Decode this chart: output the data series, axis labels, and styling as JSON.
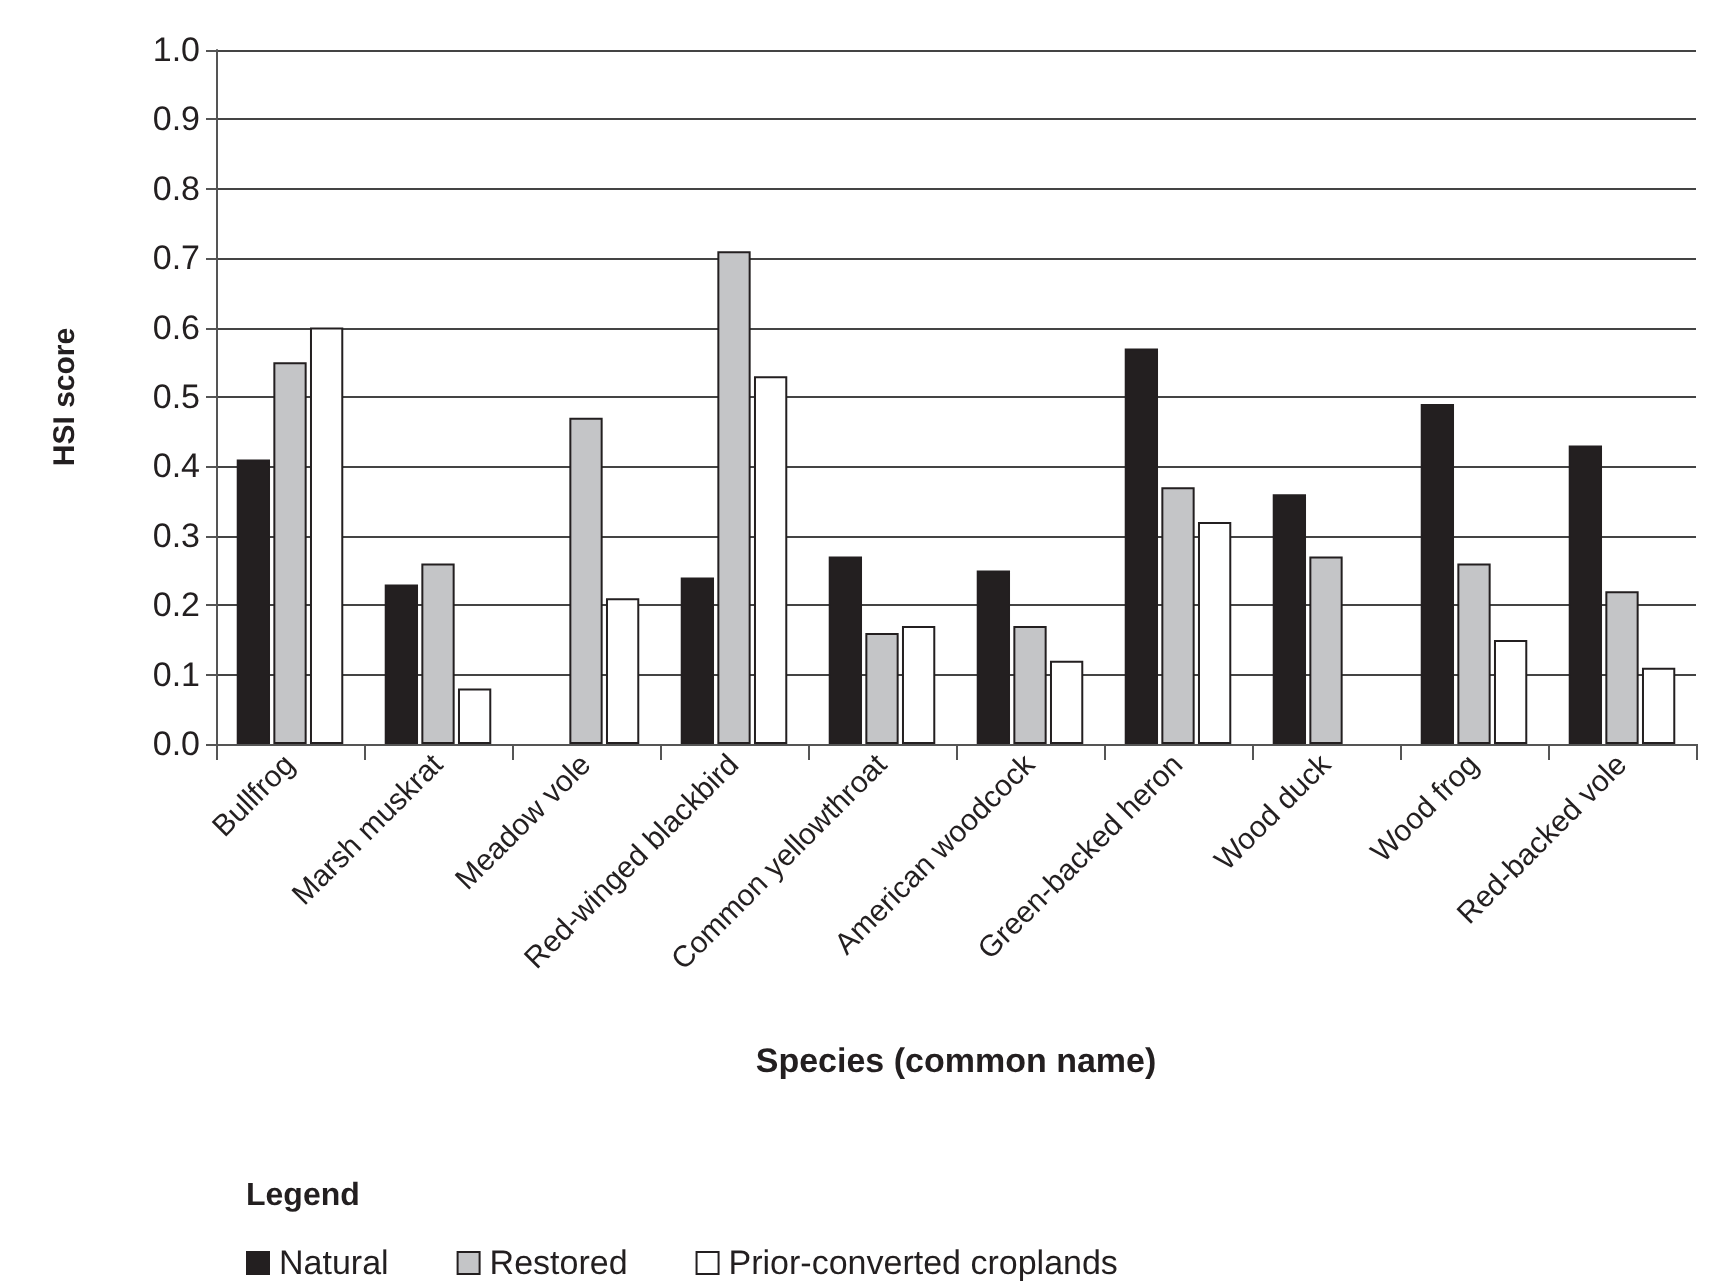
{
  "chart_data": {
    "type": "bar",
    "xlabel": "Species (common name)",
    "ylabel": "HSI score",
    "legend_title": "Legend",
    "categories": [
      "Bullfrog",
      "Marsh muskrat",
      "Meadow vole",
      "Red-winged blackbird",
      "Common yellowthroat",
      "American woodcock",
      "Green-backed heron",
      "Wood duck",
      "Wood frog",
      "Red-backed vole"
    ],
    "series": [
      {
        "name": "Natural",
        "color": "#231f20",
        "values": [
          0.41,
          0.23,
          null,
          0.24,
          0.27,
          0.25,
          0.57,
          0.36,
          0.49,
          0.43
        ]
      },
      {
        "name": "Restored",
        "color": "#c4c5c7",
        "values": [
          0.55,
          0.26,
          0.47,
          0.71,
          0.16,
          0.17,
          0.37,
          0.27,
          0.26,
          0.22
        ]
      },
      {
        "name": "Prior-converted croplands",
        "color": "#ffffff",
        "values": [
          0.6,
          0.08,
          0.21,
          0.53,
          0.17,
          0.12,
          0.32,
          null,
          0.15,
          0.11
        ]
      }
    ],
    "ylim": [
      0,
      1.0
    ],
    "yticks": [
      {
        "value": 0,
        "label": "0.0"
      },
      0.1,
      0.2,
      0.3,
      0.4,
      0.5,
      0.6,
      0.7,
      0.8,
      0.9,
      {
        "value": 1,
        "label": "1.0"
      }
    ],
    "grid": "y",
    "legend": "bottom left"
  }
}
